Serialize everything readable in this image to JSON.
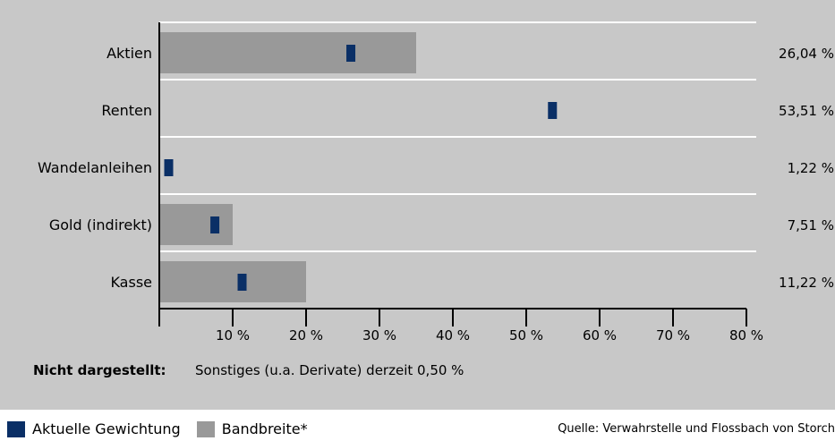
{
  "chart_data": {
    "type": "bar",
    "orientation": "horizontal",
    "categories": [
      "Aktien",
      "Renten",
      "Wandelanleihen",
      "Gold (indirekt)",
      "Kasse"
    ],
    "series": [
      {
        "name": "Aktuelle Gewichtung",
        "values": [
          26.04,
          53.51,
          1.22,
          7.51,
          11.22
        ],
        "color": "#0a2f66"
      },
      {
        "name": "Bandbreite*",
        "ranges": [
          [
            0,
            35
          ],
          [
            0,
            0
          ],
          [
            0,
            0
          ],
          [
            0,
            10
          ],
          [
            0,
            20
          ]
        ],
        "color": "#999999"
      }
    ],
    "value_labels": [
      "26,04 %",
      "53,51 %",
      "1,22 %",
      "7,51 %",
      "11,22 %"
    ],
    "xticks": [
      10,
      20,
      30,
      40,
      50,
      60,
      70,
      80
    ],
    "xtick_labels": [
      "10 %",
      "20 %",
      "30 %",
      "40 %",
      "50 %",
      "60 %",
      "70 %",
      "80 %"
    ],
    "xlim": [
      0,
      80
    ],
    "background": "#c8c8c8"
  },
  "note": {
    "label": "Nicht dargestellt:",
    "text": "Sonstiges (u.a. Derivate) derzeit  0,50 %"
  },
  "legend": {
    "current": "Aktuelle Gewichtung",
    "range": "Bandbreite*"
  },
  "source": "Quelle: Verwahrstelle und Flossbach von Storch"
}
